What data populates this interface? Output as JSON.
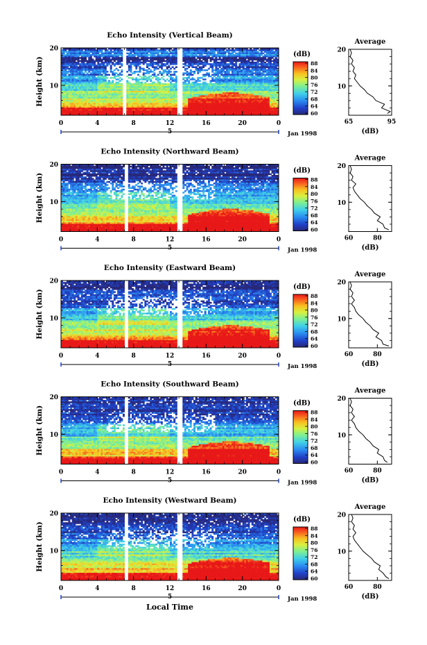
{
  "figure": {
    "x_axis_label": "Local Time",
    "date_label": "Jan 1998",
    "day_label": "5",
    "average_title": "Average",
    "average_xlabel": "(dB)",
    "colorbar_unit": "(dB)"
  },
  "chart_data": [
    {
      "type": "heatmap",
      "title": "Echo Intensity (Vertical Beam)",
      "ylabel": "Height (km)",
      "x_ticks": [
        "0",
        "4",
        "8",
        "12",
        "16",
        "20",
        "0"
      ],
      "y_ticks": [
        "20",
        "10"
      ],
      "xlim": [
        0,
        24
      ],
      "ylim": [
        2,
        20
      ],
      "colorbar_ticks": [
        "88",
        "84",
        "80",
        "76",
        "72",
        "68",
        "64",
        "60"
      ],
      "colorbar_range": [
        60,
        88
      ],
      "data_gaps_hours": [
        [
          6.8,
          7.2
        ],
        [
          12.8,
          13.3
        ]
      ],
      "average": {
        "x_ticks": [
          "65",
          "95"
        ],
        "xlim": [
          65,
          95
        ],
        "y_ticks": [
          "20",
          "10"
        ],
        "profile": [
          [
            2.5,
            92
          ],
          [
            3,
            94
          ],
          [
            4,
            88
          ],
          [
            5,
            90
          ],
          [
            6,
            84
          ],
          [
            7,
            82
          ],
          [
            8,
            78
          ],
          [
            9,
            76
          ],
          [
            10,
            73
          ],
          [
            11,
            71
          ],
          [
            12,
            69
          ],
          [
            13,
            70
          ],
          [
            14,
            68
          ],
          [
            15,
            69
          ],
          [
            16,
            67
          ],
          [
            17,
            68
          ],
          [
            18,
            66
          ],
          [
            19,
            67
          ],
          [
            20,
            66
          ]
        ]
      }
    },
    {
      "type": "heatmap",
      "title": "Echo Intensity (Northward Beam)",
      "ylabel": "Height (km)",
      "x_ticks": [
        "0",
        "4",
        "8",
        "12",
        "16",
        "20",
        "0"
      ],
      "y_ticks": [
        "20",
        "10"
      ],
      "xlim": [
        0,
        24
      ],
      "ylim": [
        2,
        20
      ],
      "colorbar_ticks": [
        "88",
        "84",
        "80",
        "76",
        "72",
        "68",
        "64",
        "60"
      ],
      "colorbar_range": [
        60,
        88
      ],
      "data_gaps_hours": [
        [
          7.0,
          7.4
        ],
        [
          12.8,
          13.3
        ]
      ],
      "average": {
        "x_ticks": [
          "60",
          "80"
        ],
        "xlim": [
          60,
          90
        ],
        "y_ticks": [
          "20",
          "10"
        ],
        "profile": [
          [
            2.5,
            88
          ],
          [
            3,
            85
          ],
          [
            4,
            84
          ],
          [
            5,
            80
          ],
          [
            6,
            82
          ],
          [
            7,
            78
          ],
          [
            8,
            76
          ],
          [
            9,
            73
          ],
          [
            10,
            71
          ],
          [
            11,
            68
          ],
          [
            12,
            66
          ],
          [
            13,
            64
          ],
          [
            14,
            63
          ],
          [
            15,
            65
          ],
          [
            16,
            62
          ],
          [
            17,
            63
          ],
          [
            18,
            61
          ],
          [
            19,
            62
          ],
          [
            20,
            61
          ]
        ]
      }
    },
    {
      "type": "heatmap",
      "title": "Echo Intensity (Eastward Beam)",
      "ylabel": "Height (km)",
      "x_ticks": [
        "0",
        "4",
        "8",
        "12",
        "16",
        "20",
        "0"
      ],
      "y_ticks": [
        "20",
        "10"
      ],
      "xlim": [
        0,
        24
      ],
      "ylim": [
        2,
        20
      ],
      "colorbar_ticks": [
        "88",
        "84",
        "80",
        "76",
        "72",
        "68",
        "64",
        "60"
      ],
      "colorbar_range": [
        60,
        88
      ],
      "data_gaps_hours": [
        [
          7.0,
          7.4
        ],
        [
          12.8,
          13.3
        ]
      ],
      "average": {
        "x_ticks": [
          "60",
          "80"
        ],
        "xlim": [
          60,
          90
        ],
        "y_ticks": [
          "20",
          "10"
        ],
        "profile": [
          [
            2.5,
            88
          ],
          [
            3,
            84
          ],
          [
            4,
            83
          ],
          [
            5,
            79
          ],
          [
            6,
            81
          ],
          [
            7,
            77
          ],
          [
            8,
            75
          ],
          [
            9,
            72
          ],
          [
            10,
            70
          ],
          [
            11,
            67
          ],
          [
            12,
            65
          ],
          [
            13,
            64
          ],
          [
            14,
            62
          ],
          [
            15,
            64
          ],
          [
            16,
            62
          ],
          [
            17,
            63
          ],
          [
            18,
            61
          ],
          [
            19,
            62
          ],
          [
            20,
            61
          ]
        ]
      }
    },
    {
      "type": "heatmap",
      "title": "Echo Intensity (Southward Beam)",
      "ylabel": "Height (km)",
      "x_ticks": [
        "0",
        "4",
        "8",
        "12",
        "16",
        "20",
        "0"
      ],
      "y_ticks": [
        "20",
        "10"
      ],
      "xlim": [
        0,
        24
      ],
      "ylim": [
        2,
        20
      ],
      "colorbar_ticks": [
        "88",
        "84",
        "80",
        "76",
        "72",
        "68",
        "64",
        "60"
      ],
      "colorbar_range": [
        60,
        88
      ],
      "data_gaps_hours": [
        [
          7.0,
          7.4
        ],
        [
          12.8,
          13.3
        ]
      ],
      "average": {
        "x_ticks": [
          "60",
          "80"
        ],
        "xlim": [
          60,
          90
        ],
        "y_ticks": [
          "20",
          "10"
        ],
        "profile": [
          [
            2.5,
            87
          ],
          [
            3,
            85
          ],
          [
            4,
            84
          ],
          [
            5,
            80
          ],
          [
            6,
            81
          ],
          [
            7,
            77
          ],
          [
            8,
            75
          ],
          [
            9,
            72
          ],
          [
            10,
            70
          ],
          [
            11,
            67
          ],
          [
            12,
            65
          ],
          [
            13,
            64
          ],
          [
            14,
            62
          ],
          [
            15,
            64
          ],
          [
            16,
            62
          ],
          [
            17,
            63
          ],
          [
            18,
            61
          ],
          [
            19,
            62
          ],
          [
            20,
            61
          ]
        ]
      }
    },
    {
      "type": "heatmap",
      "title": "Echo Intensity (Westward Beam)",
      "ylabel": "Height (km)",
      "x_ticks": [
        "0",
        "4",
        "8",
        "12",
        "16",
        "20",
        "0"
      ],
      "y_ticks": [
        "20",
        "10"
      ],
      "xlim": [
        0,
        24
      ],
      "ylim": [
        2,
        20
      ],
      "colorbar_ticks": [
        "88",
        "84",
        "80",
        "76",
        "72",
        "68",
        "64",
        "60"
      ],
      "colorbar_range": [
        60,
        88
      ],
      "data_gaps_hours": [
        [
          7.0,
          7.4
        ],
        [
          12.8,
          13.3
        ]
      ],
      "average": {
        "x_ticks": [
          "60",
          "80"
        ],
        "xlim": [
          60,
          90
        ],
        "y_ticks": [
          "20",
          "10"
        ],
        "profile": [
          [
            2.5,
            88
          ],
          [
            3,
            86
          ],
          [
            4,
            84
          ],
          [
            5,
            81
          ],
          [
            6,
            82
          ],
          [
            7,
            78
          ],
          [
            8,
            76
          ],
          [
            9,
            73
          ],
          [
            10,
            70
          ],
          [
            11,
            68
          ],
          [
            12,
            66
          ],
          [
            13,
            64
          ],
          [
            14,
            63
          ],
          [
            15,
            65
          ],
          [
            16,
            63
          ],
          [
            17,
            64
          ],
          [
            18,
            62
          ],
          [
            19,
            63
          ],
          [
            20,
            62
          ]
        ]
      }
    }
  ]
}
